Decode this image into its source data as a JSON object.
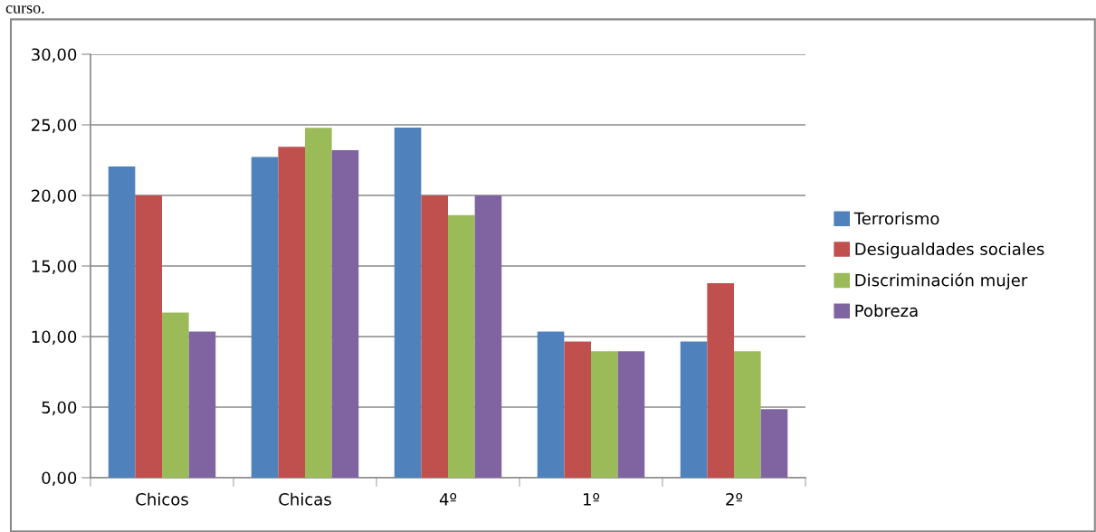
{
  "chart_data": {
    "type": "bar",
    "categories": [
      "Chicos",
      "Chicas",
      "4º",
      "1º",
      "2º"
    ],
    "series": [
      {
        "name": "Terrorismo",
        "color": "#4f81bd",
        "values": [
          22.05,
          22.73,
          24.8,
          10.36,
          9.64
        ]
      },
      {
        "name": "Desigualdades sociales",
        "color": "#c0504d",
        "values": [
          20.0,
          23.45,
          20.0,
          9.64,
          13.79
        ]
      },
      {
        "name": "Discriminación mujer",
        "color": "#9bbb59",
        "values": [
          11.7,
          24.79,
          18.6,
          8.96,
          8.96
        ]
      },
      {
        "name": "Pobreza",
        "color": "#8064a2",
        "values": [
          10.36,
          23.2,
          20.0,
          8.96,
          4.86
        ]
      }
    ],
    "ylim": [
      0,
      30
    ],
    "yticks": [
      {
        "value": 0,
        "label": "0,00"
      },
      {
        "value": 5,
        "label": "5,00"
      },
      {
        "value": 10,
        "label": "10,00"
      },
      {
        "value": 15,
        "label": "15,00"
      },
      {
        "value": 20,
        "label": "20,00"
      },
      {
        "value": 25,
        "label": "25,00"
      },
      {
        "value": 30,
        "label": "30,00"
      }
    ],
    "grid": "y",
    "legend": "right",
    "annotations": [
      "curso."
    ]
  }
}
